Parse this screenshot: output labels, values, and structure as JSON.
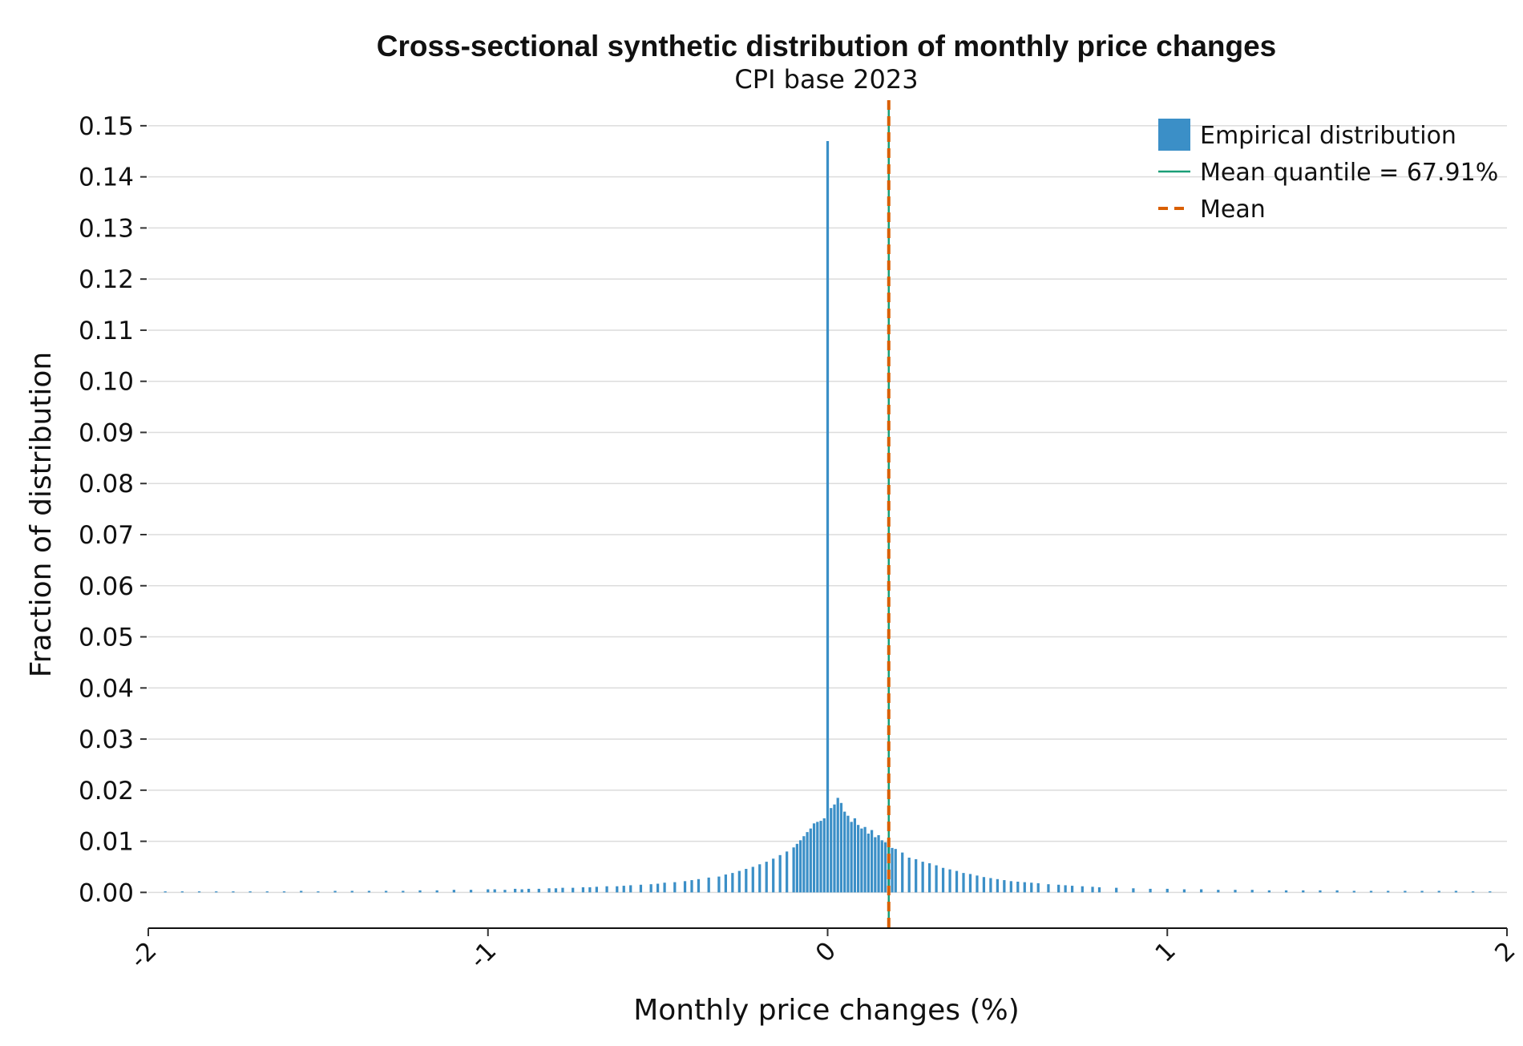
{
  "chart_data": {
    "type": "bar",
    "title": "Cross-sectional synthetic distribution of monthly price changes",
    "subtitle": "CPI base 2023",
    "xlabel": "Monthly price changes (%)",
    "ylabel": "Fraction of distribution",
    "xlim": [
      -2,
      2
    ],
    "ylim": [
      -0.007,
      0.155
    ],
    "x_ticks": [
      "-2",
      "-1",
      "0",
      "1",
      "2"
    ],
    "y_ticks": [
      "0.00",
      "0.01",
      "0.02",
      "0.03",
      "0.04",
      "0.05",
      "0.06",
      "0.07",
      "0.08",
      "0.09",
      "0.10",
      "0.11",
      "0.12",
      "0.13",
      "0.14",
      "0.15"
    ],
    "grid": "horizontal",
    "legend_position": "top-right",
    "bin_width": 0.01,
    "series": [
      {
        "name": "Empirical distribution",
        "color": "#3b8fc7",
        "x": [
          -1.95,
          -1.9,
          -1.85,
          -1.8,
          -1.75,
          -1.7,
          -1.65,
          -1.6,
          -1.55,
          -1.5,
          -1.45,
          -1.4,
          -1.35,
          -1.3,
          -1.25,
          -1.2,
          -1.15,
          -1.1,
          -1.05,
          -1.0,
          -0.98,
          -0.95,
          -0.92,
          -0.9,
          -0.88,
          -0.85,
          -0.82,
          -0.8,
          -0.78,
          -0.75,
          -0.72,
          -0.7,
          -0.68,
          -0.65,
          -0.62,
          -0.6,
          -0.58,
          -0.55,
          -0.52,
          -0.5,
          -0.48,
          -0.45,
          -0.42,
          -0.4,
          -0.38,
          -0.35,
          -0.32,
          -0.3,
          -0.28,
          -0.26,
          -0.24,
          -0.22,
          -0.2,
          -0.18,
          -0.16,
          -0.14,
          -0.12,
          -0.1,
          -0.09,
          -0.08,
          -0.07,
          -0.06,
          -0.05,
          -0.04,
          -0.03,
          -0.02,
          -0.01,
          0.0,
          0.01,
          0.02,
          0.03,
          0.04,
          0.05,
          0.06,
          0.07,
          0.08,
          0.09,
          0.1,
          0.11,
          0.12,
          0.13,
          0.14,
          0.15,
          0.16,
          0.17,
          0.18,
          0.19,
          0.2,
          0.22,
          0.24,
          0.26,
          0.28,
          0.3,
          0.32,
          0.34,
          0.36,
          0.38,
          0.4,
          0.42,
          0.44,
          0.46,
          0.48,
          0.5,
          0.52,
          0.54,
          0.56,
          0.58,
          0.6,
          0.62,
          0.65,
          0.68,
          0.7,
          0.72,
          0.75,
          0.78,
          0.8,
          0.85,
          0.9,
          0.95,
          1.0,
          1.05,
          1.1,
          1.15,
          1.2,
          1.25,
          1.3,
          1.35,
          1.4,
          1.45,
          1.5,
          1.55,
          1.6,
          1.65,
          1.7,
          1.75,
          1.8,
          1.85,
          1.9,
          1.95
        ],
        "values": [
          0.0002,
          0.0002,
          0.0002,
          0.0002,
          0.0002,
          0.0002,
          0.0002,
          0.0002,
          0.0003,
          0.0002,
          0.0003,
          0.0003,
          0.0003,
          0.0003,
          0.0003,
          0.0004,
          0.0004,
          0.0005,
          0.0005,
          0.0006,
          0.0006,
          0.0005,
          0.0007,
          0.0006,
          0.0007,
          0.0007,
          0.0008,
          0.0008,
          0.0009,
          0.0009,
          0.001,
          0.001,
          0.0011,
          0.0012,
          0.0012,
          0.0013,
          0.0014,
          0.0015,
          0.0016,
          0.0017,
          0.0019,
          0.002,
          0.0022,
          0.0024,
          0.0026,
          0.0029,
          0.0031,
          0.0035,
          0.0038,
          0.0042,
          0.0046,
          0.005,
          0.0055,
          0.006,
          0.0066,
          0.0073,
          0.008,
          0.0088,
          0.0095,
          0.0102,
          0.011,
          0.0118,
          0.0125,
          0.0135,
          0.0138,
          0.014,
          0.0145,
          0.147,
          0.0165,
          0.0172,
          0.0185,
          0.0175,
          0.0158,
          0.015,
          0.0138,
          0.0145,
          0.0132,
          0.0125,
          0.0128,
          0.0115,
          0.0122,
          0.0108,
          0.0112,
          0.0102,
          0.0098,
          0.0092,
          0.0087,
          0.0085,
          0.0078,
          0.0068,
          0.0065,
          0.006,
          0.0057,
          0.0053,
          0.0048,
          0.0045,
          0.0042,
          0.0038,
          0.0036,
          0.0033,
          0.003,
          0.0028,
          0.0026,
          0.0024,
          0.0022,
          0.0021,
          0.002,
          0.0019,
          0.0018,
          0.0016,
          0.0015,
          0.0014,
          0.0013,
          0.0012,
          0.0011,
          0.001,
          0.0009,
          0.0008,
          0.0007,
          0.0007,
          0.0006,
          0.0006,
          0.0005,
          0.0005,
          0.0005,
          0.0004,
          0.0004,
          0.0004,
          0.0004,
          0.0004,
          0.0003,
          0.0003,
          0.0003,
          0.0003,
          0.0003,
          0.0003,
          0.0003,
          0.0002,
          0.0002
        ]
      }
    ],
    "reference_lines": [
      {
        "name": "Mean quantile = 67.91%",
        "x": 0.18,
        "color": "#1a9e77",
        "style": "solid"
      },
      {
        "name": "Mean",
        "x": 0.18,
        "color": "#d95f02",
        "style": "dashed"
      }
    ]
  }
}
